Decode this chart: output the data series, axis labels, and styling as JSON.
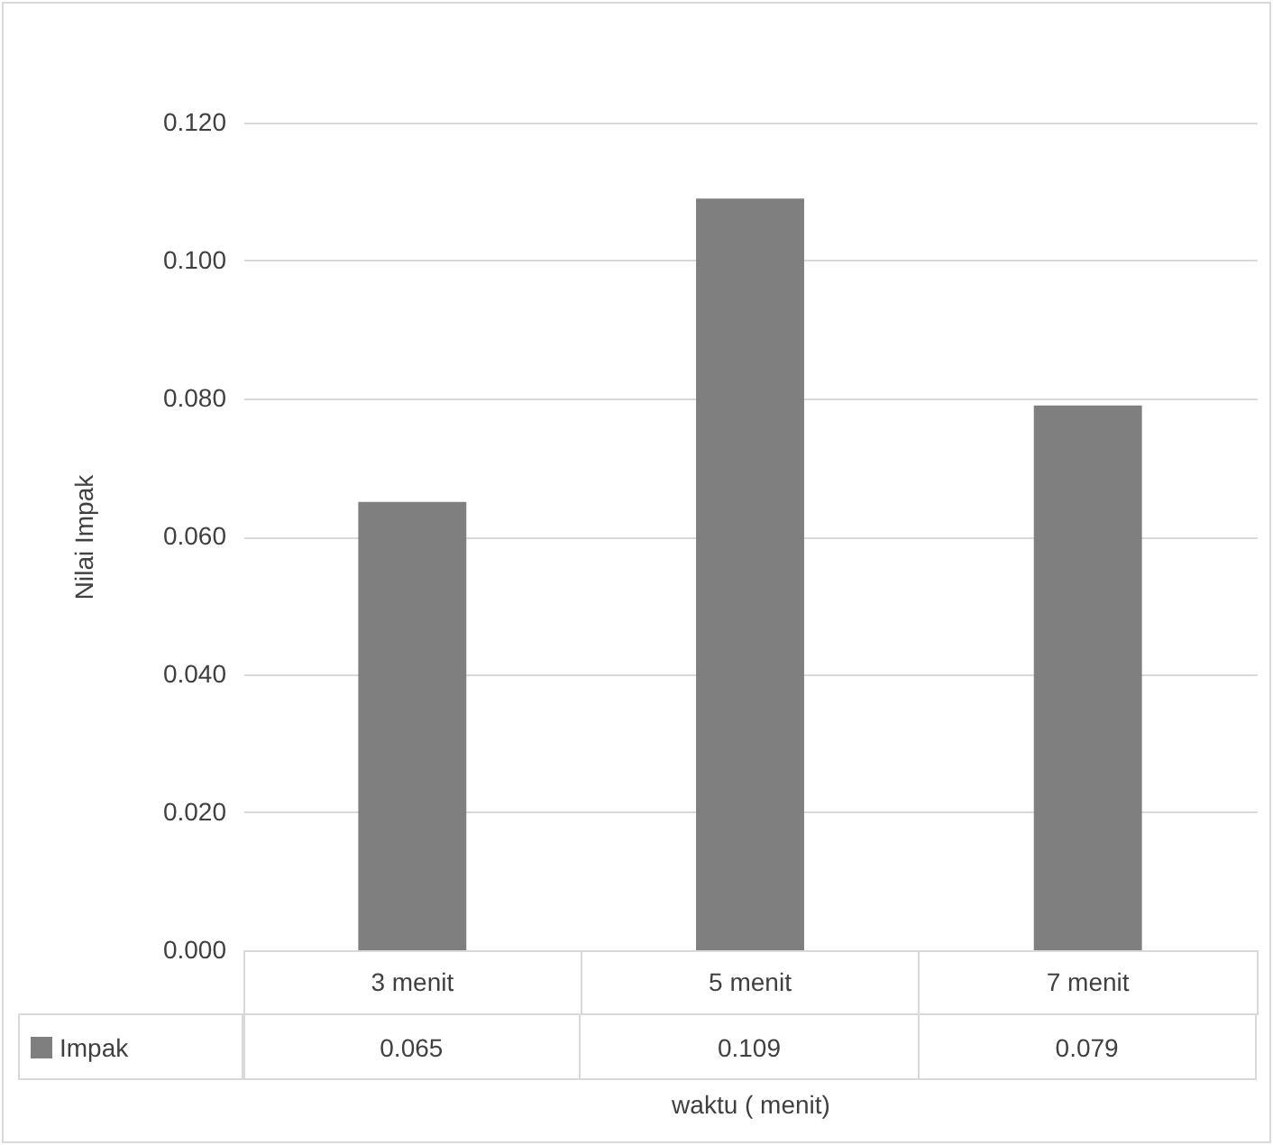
{
  "chart_data": {
    "type": "bar",
    "xlabel": "waktu ( menit)",
    "ylabel": "Nilai Impak",
    "categories": [
      "3 menit",
      "5 menit",
      "7 menit"
    ],
    "series": [
      {
        "name": "Impak",
        "color": "#7f7f7f",
        "values": [
          0.065,
          0.109,
          0.079
        ]
      }
    ],
    "ylim": [
      0,
      0.12
    ],
    "yticks": [
      {
        "value": 0,
        "label": "0.000"
      },
      {
        "value": 0.02,
        "label": "0.020"
      },
      {
        "value": 0.04,
        "label": "0.040"
      },
      {
        "value": 0.06,
        "label": "0.060"
      },
      {
        "value": 0.08,
        "label": "0.080"
      },
      {
        "value": 0.1,
        "label": "0.100"
      },
      {
        "value": 0.12,
        "label": "0.120"
      }
    ],
    "grid": "y",
    "data_labels": true,
    "legend": "bottom"
  }
}
